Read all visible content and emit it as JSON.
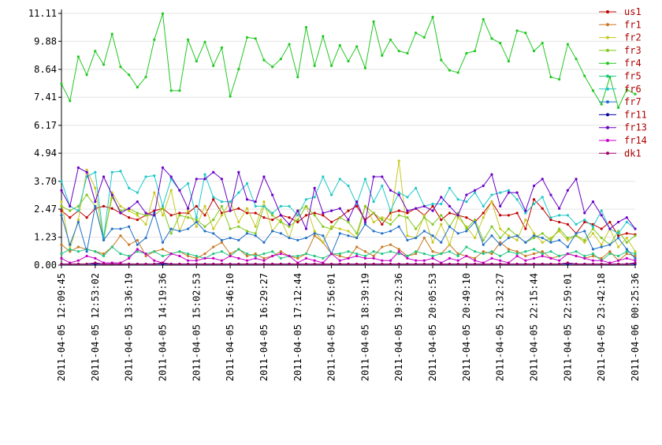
{
  "chart_data": {
    "type": "line",
    "categories": [
      "2011-04-05 12:09:45",
      null,
      null,
      null,
      "2011-04-05 12:53:02",
      null,
      null,
      null,
      "2011-04-05 13:36:19",
      null,
      null,
      null,
      "2011-04-05 14:19:36",
      null,
      null,
      null,
      "2011-04-05 15:02:53",
      null,
      null,
      null,
      "2011-04-05 15:46:10",
      null,
      null,
      null,
      "2011-04-05 16:29:27",
      null,
      null,
      null,
      "2011-04-05 17:12:44",
      null,
      null,
      null,
      "2011-04-05 17:56:01",
      null,
      null,
      null,
      "2011-04-05 18:39:19",
      null,
      null,
      null,
      "2011-04-05 19:22:36",
      null,
      null,
      null,
      "2011-04-05 20:05:53",
      null,
      null,
      null,
      "2011-04-05 20:49:10",
      null,
      null,
      null,
      "2011-04-05 21:32:27",
      null,
      null,
      null,
      "2011-04-05 22:15:44",
      null,
      null,
      null,
      "2011-04-05 22:59:01",
      null,
      null,
      null,
      "2011-04-05 23:42:18",
      null,
      null,
      null,
      "2011-04-06 00:25:36"
    ],
    "ylim": [
      0,
      11.11
    ],
    "yticks": [
      {
        "value": 0,
        "label": "0.00"
      },
      {
        "value": 1.23,
        "label": "1.23"
      },
      {
        "value": 2.47,
        "label": "2.47"
      },
      {
        "value": 3.7,
        "label": "3.70"
      },
      {
        "value": 4.94,
        "label": "4.94"
      },
      {
        "value": 6.17,
        "label": "6.17"
      },
      {
        "value": 7.41,
        "label": "7.41"
      },
      {
        "value": 8.64,
        "label": "8.64"
      },
      {
        "value": 9.88,
        "label": "9.88"
      },
      {
        "value": 11.11,
        "label": "11.11"
      }
    ],
    "grid": true,
    "legend": "upper right",
    "series": [
      {
        "name": "us1",
        "color": "#c00000",
        "values": [
          2.4,
          2.1,
          2.4,
          2.1,
          2.5,
          2.6,
          2.5,
          2.3,
          2.1,
          2.0,
          2.2,
          2.4,
          2.5,
          2.2,
          2.3,
          2.3,
          2.6,
          2.2,
          2.9,
          2.3,
          2.4,
          2.5,
          2.3,
          2.3,
          2.1,
          2.0,
          2.2,
          2.1,
          1.9,
          2.2,
          2.3,
          2.2,
          1.9,
          2.1,
          2.4,
          2.6,
          2.0,
          2.3,
          1.8,
          2.3,
          2.4,
          2.3,
          2.5,
          2.2,
          2.6,
          2.0,
          2.3,
          2.2,
          2.1,
          1.9,
          2.3,
          2.8,
          2.2,
          2.2,
          2.3,
          1.6,
          2.9,
          2.5,
          2.0,
          1.9,
          1.8,
          1.4,
          1.9,
          1.8,
          1.6,
          1.9,
          1.3,
          1.4,
          1.35
        ]
      },
      {
        "name": "fr1",
        "color": "#c87820",
        "values": [
          0.9,
          0.6,
          0.8,
          0.7,
          0.6,
          0.5,
          0.8,
          1.3,
          0.9,
          1.1,
          0.4,
          0.6,
          0.7,
          0.5,
          0.6,
          0.4,
          0.3,
          0.5,
          0.8,
          1.0,
          0.5,
          0.7,
          0.4,
          0.5,
          0.3,
          0.4,
          0.6,
          0.4,
          0.3,
          0.5,
          1.3,
          1.0,
          0.5,
          0.4,
          0.3,
          0.8,
          0.6,
          0.4,
          0.8,
          0.9,
          0.7,
          0.4,
          0.5,
          1.2,
          0.6,
          0.5,
          0.9,
          0.5,
          0.4,
          0.3,
          0.6,
          0.5,
          1.0,
          0.7,
          0.6,
          0.4,
          0.5,
          0.6,
          0.3,
          0.4,
          0.5,
          0.4,
          0.3,
          0.4,
          0.3,
          0.6,
          0.2,
          0.5,
          0.4
        ]
      },
      {
        "name": "fr2",
        "color": "#c8c820",
        "values": [
          2.8,
          0.7,
          2.0,
          4.2,
          3.4,
          1.1,
          3.2,
          2.6,
          2.4,
          2.2,
          1.8,
          3.2,
          2.2,
          3.3,
          1.5,
          2.4,
          1.7,
          2.6,
          1.6,
          2.2,
          2.8,
          1.9,
          2.5,
          1.7,
          2.8,
          1.5,
          2.0,
          1.2,
          2.4,
          2.6,
          1.5,
          1.0,
          1.7,
          1.6,
          1.5,
          1.2,
          2.6,
          1.9,
          2.1,
          2.0,
          4.6,
          1.3,
          1.2,
          2.2,
          1.0,
          1.8,
          0.9,
          2.1,
          1.7,
          1.2,
          2.1,
          2.8,
          1.6,
          1.3,
          1.1,
          2.0,
          1.4,
          1.0,
          1.2,
          1.5,
          1.1,
          1.3,
          1.0,
          1.4,
          0.9,
          1.6,
          0.8,
          1.2,
          0.6
        ]
      },
      {
        "name": "fr3",
        "color": "#80c820",
        "values": [
          2.6,
          2.4,
          2.6,
          3.1,
          2.6,
          1.2,
          3.0,
          2.4,
          2.5,
          2.3,
          2.2,
          2.2,
          2.5,
          1.4,
          2.2,
          2.1,
          2.0,
          1.7,
          2.0,
          2.6,
          1.6,
          1.7,
          1.5,
          1.4,
          2.6,
          2.2,
          1.9,
          1.7,
          2.0,
          2.6,
          2.2,
          1.7,
          1.6,
          2.1,
          1.9,
          1.4,
          2.6,
          2.3,
          2.0,
          1.8,
          2.2,
          2.1,
          1.6,
          2.1,
          1.8,
          2.2,
          1.7,
          2.3,
          1.6,
          2.0,
          1.1,
          1.7,
          1.2,
          1.6,
          1.3,
          1.0,
          1.2,
          1.4,
          1.1,
          1.6,
          1.2,
          1.3,
          1.1,
          1.6,
          1.2,
          0.9,
          1.5,
          1.0,
          1.3
        ]
      },
      {
        "name": "fr4",
        "color": "#20c820",
        "values": [
          8.0,
          7.25,
          9.2,
          8.4,
          9.45,
          8.85,
          10.2,
          8.75,
          8.4,
          7.85,
          8.3,
          9.95,
          11.1,
          7.7,
          7.7,
          9.95,
          9.0,
          9.85,
          8.8,
          9.6,
          7.45,
          8.65,
          10.05,
          10.0,
          9.05,
          8.75,
          9.1,
          9.75,
          8.3,
          10.5,
          8.8,
          10.1,
          8.8,
          9.7,
          9.0,
          9.65,
          8.7,
          10.75,
          9.25,
          9.95,
          9.45,
          9.35,
          10.25,
          10.05,
          10.95,
          9.05,
          8.6,
          8.5,
          9.35,
          9.45,
          10.85,
          10.0,
          9.8,
          9.0,
          10.35,
          10.25,
          9.45,
          9.8,
          8.3,
          8.2,
          9.75,
          9.1,
          8.35,
          7.7,
          7.1,
          8.3,
          6.95,
          7.75,
          7.55
        ]
      },
      {
        "name": "fr5",
        "color": "#20c880",
        "values": [
          0.5,
          0.7,
          0.6,
          0.7,
          0.6,
          0.4,
          0.8,
          0.5,
          0.4,
          0.6,
          0.5,
          0.6,
          0.4,
          0.5,
          0.6,
          0.5,
          0.4,
          0.3,
          0.5,
          0.6,
          0.4,
          0.7,
          0.5,
          0.4,
          0.5,
          0.6,
          0.3,
          0.4,
          0.4,
          0.5,
          0.4,
          0.3,
          0.5,
          0.5,
          0.6,
          0.5,
          0.4,
          0.6,
          0.5,
          0.6,
          0.5,
          0.4,
          0.6,
          0.5,
          0.4,
          0.5,
          0.6,
          0.4,
          0.8,
          0.6,
          0.5,
          0.6,
          0.4,
          0.6,
          0.5,
          0.6,
          0.7,
          0.5,
          0.6,
          0.4,
          0.5,
          0.6,
          0.4,
          0.5,
          0.2,
          0.5,
          0.4,
          0.6,
          0.5
        ]
      },
      {
        "name": "fr6",
        "color": "#20c8c8",
        "values": [
          3.7,
          2.6,
          2.4,
          3.9,
          4.1,
          1.2,
          4.1,
          4.15,
          3.4,
          3.2,
          3.9,
          3.95,
          2.6,
          3.8,
          3.3,
          3.6,
          2.1,
          4.0,
          3.0,
          2.8,
          2.8,
          3.2,
          3.6,
          2.6,
          2.6,
          2.3,
          2.6,
          2.6,
          2.2,
          2.9,
          3.0,
          3.9,
          3.1,
          3.8,
          3.5,
          2.7,
          3.8,
          2.8,
          3.5,
          2.4,
          3.2,
          3.0,
          3.4,
          2.6,
          2.7,
          2.7,
          3.4,
          2.9,
          2.8,
          3.2,
          2.6,
          3.1,
          3.2,
          3.3,
          2.9,
          2.3,
          2.7,
          3.0,
          2.1,
          2.2,
          2.2,
          1.8,
          2.0,
          1.7,
          2.4,
          1.6,
          1.4,
          1.9,
          1.6
        ]
      },
      {
        "name": "fr7",
        "color": "#2070c8",
        "values": [
          2.2,
          0.9,
          1.9,
          0.6,
          2.6,
          1.1,
          1.6,
          1.6,
          1.7,
          0.9,
          1.2,
          2.3,
          1.0,
          1.6,
          1.5,
          1.6,
          1.9,
          1.5,
          1.4,
          1.1,
          1.2,
          1.1,
          1.4,
          1.3,
          1.0,
          1.5,
          1.4,
          1.2,
          1.1,
          1.2,
          1.4,
          1.3,
          0.5,
          1.4,
          1.3,
          1.2,
          1.8,
          1.5,
          1.4,
          1.5,
          1.7,
          1.1,
          1.2,
          1.5,
          1.3,
          1.0,
          1.7,
          1.4,
          1.5,
          1.9,
          0.9,
          1.3,
          0.9,
          1.2,
          1.3,
          1.0,
          1.3,
          1.2,
          1.0,
          1.1,
          0.8,
          1.4,
          1.5,
          0.7,
          0.8,
          0.9,
          1.2,
          0.7,
          0.3
        ]
      },
      {
        "name": "fr11",
        "color": "#0000a0",
        "values": [
          0.05,
          0.05,
          0.05,
          0.05,
          0.05,
          0.05,
          0.05,
          0.05,
          0.05,
          0.05,
          0.05,
          0.05,
          0.05,
          0.05,
          0.05,
          0.05,
          0.05,
          0.05,
          0.05,
          0.05,
          0.05,
          0.05,
          0.05,
          0.05,
          0.05,
          0.05,
          0.05,
          0.05,
          0.05,
          0.05,
          0.05,
          0.05,
          0.05,
          0.05,
          0.05,
          0.05,
          0.05,
          0.05,
          0.05,
          0.05,
          0.05,
          0.05,
          0.05,
          0.05,
          0.05,
          0.05,
          0.05,
          0.05,
          0.05,
          0.05,
          0.05,
          0.05,
          0.05,
          0.05,
          0.05,
          0.05,
          0.05,
          0.05,
          0.05,
          0.05,
          0.05,
          0.05,
          0.05,
          0.05,
          0.05,
          0.05,
          0.05,
          0.05,
          0.05
        ]
      },
      {
        "name": "fr13",
        "color": "#6a00c8",
        "values": [
          3.3,
          2.6,
          4.3,
          4.1,
          2.8,
          3.9,
          3.1,
          2.3,
          2.5,
          2.8,
          2.3,
          2.2,
          4.3,
          3.9,
          3.3,
          2.5,
          3.8,
          3.8,
          4.1,
          3.8,
          2.4,
          4.1,
          2.9,
          2.8,
          3.9,
          3.1,
          2.2,
          1.8,
          2.4,
          1.6,
          3.4,
          2.3,
          2.4,
          2.5,
          2.0,
          2.8,
          1.9,
          3.9,
          3.9,
          3.3,
          3.1,
          2.4,
          2.5,
          2.6,
          2.4,
          3.0,
          2.6,
          2.2,
          3.1,
          3.3,
          3.5,
          4.0,
          2.6,
          3.2,
          3.2,
          2.4,
          3.5,
          3.8,
          3.1,
          2.5,
          3.3,
          3.8,
          2.3,
          2.8,
          2.2,
          1.6,
          1.9,
          2.1,
          1.6
        ]
      },
      {
        "name": "fr14",
        "color": "#c800c8",
        "values": [
          0.3,
          0.1,
          0.2,
          0.4,
          0.3,
          0.1,
          0.1,
          0.1,
          0.3,
          0.7,
          0.5,
          0.2,
          0.1,
          0.5,
          0.4,
          0.2,
          0.2,
          0.3,
          0.3,
          0.2,
          0.4,
          0.3,
          0.2,
          0.3,
          0.2,
          0.4,
          0.5,
          0.4,
          0.1,
          0.3,
          0.2,
          0.1,
          0.5,
          0.2,
          0.3,
          0.4,
          0.3,
          0.3,
          0.2,
          0.2,
          0.6,
          0.3,
          0.2,
          0.2,
          0.3,
          0.1,
          0.3,
          0.2,
          0.4,
          0.2,
          0.1,
          0.3,
          0.2,
          0.1,
          0.4,
          0.2,
          0.3,
          0.4,
          0.3,
          0.2,
          0.5,
          0.4,
          0.3,
          0.2,
          0.2,
          0.1,
          0.2,
          0.3,
          0.2
        ]
      },
      {
        "name": "dk1",
        "color": "#a0006a",
        "values": [
          0.05,
          0.05,
          0.05,
          0.05,
          0.1,
          0.05,
          0.05,
          0.05,
          0.05,
          0.05,
          0.05,
          0.05,
          0.1,
          0.05,
          0.05,
          0.05,
          0.05,
          0.05,
          0.05,
          0.05,
          0.05,
          0.05,
          0.05,
          0.05,
          0.05,
          0.05,
          0.05,
          0.05,
          0.05,
          0.05,
          0.05,
          0.05,
          0.05,
          0.05,
          0.05,
          0.05,
          0.05,
          0.05,
          0.05,
          0.05,
          0.05,
          0.05,
          0.05,
          0.05,
          0.05,
          0.05,
          0.05,
          0.05,
          0.05,
          0.05,
          0.05,
          0.05,
          0.05,
          0.05,
          0.05,
          0.05,
          0.05,
          0.05,
          0.05,
          0.05,
          0.1,
          0.05,
          0.05,
          0.05,
          0.05,
          0.05,
          0.05,
          0.05,
          0.1
        ]
      }
    ]
  }
}
